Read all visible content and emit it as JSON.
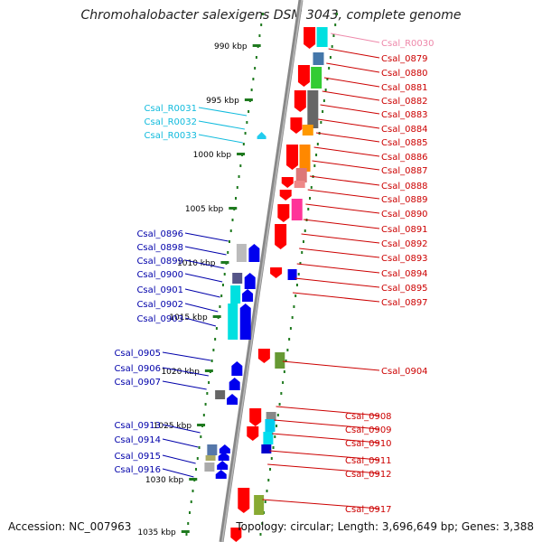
{
  "title": "Chromohalobacter salexigens DSM 3043, complete genome",
  "footer": {
    "accession": "Accession: NC_007963",
    "topology": "Topology: circular; Length: 3,696,649 bp; Genes: 3,388"
  },
  "colors": {
    "backbone": "#888888",
    "tick": "#1f7a1f",
    "forward_gene": "#ff0000",
    "reverse_gene": "#0000ee",
    "rna": "#22ccee",
    "label_forward": "#cc0000",
    "label_reverse": "#0000aa",
    "label_rna": "#11bbdd",
    "label_pseudo": "#ee88aa"
  },
  "kbp_ticks": [
    "990 kbp",
    "995 kbp",
    "1000 kbp",
    "1005 kbp",
    "1010 kbp",
    "1015 kbp",
    "1020 kbp",
    "1025 kbp",
    "1030 kbp",
    "1035 kbp"
  ],
  "right_labels": [
    {
      "text": "Csal_R0030",
      "kind": "pseudo"
    },
    {
      "text": "Csal_0879",
      "kind": "forward"
    },
    {
      "text": "Csal_0880",
      "kind": "forward"
    },
    {
      "text": "Csal_0881",
      "kind": "forward"
    },
    {
      "text": "Csal_0882",
      "kind": "forward"
    },
    {
      "text": "Csal_0883",
      "kind": "forward"
    },
    {
      "text": "Csal_0884",
      "kind": "forward"
    },
    {
      "text": "Csal_0885",
      "kind": "forward"
    },
    {
      "text": "Csal_0886",
      "kind": "forward"
    },
    {
      "text": "Csal_0887",
      "kind": "forward"
    },
    {
      "text": "Csal_0888",
      "kind": "forward"
    },
    {
      "text": "Csal_0889",
      "kind": "forward"
    },
    {
      "text": "Csal_0890",
      "kind": "forward"
    },
    {
      "text": "Csal_0891",
      "kind": "forward"
    },
    {
      "text": "Csal_0892",
      "kind": "forward"
    },
    {
      "text": "Csal_0893",
      "kind": "forward"
    },
    {
      "text": "Csal_0894",
      "kind": "forward"
    },
    {
      "text": "Csal_0895",
      "kind": "forward"
    },
    {
      "text": "Csal_0897",
      "kind": "forward"
    },
    {
      "text": "Csal_0904",
      "kind": "forward"
    },
    {
      "text": "Csal_0908",
      "kind": "forward"
    },
    {
      "text": "Csal_0909",
      "kind": "forward"
    },
    {
      "text": "Csal_0910",
      "kind": "forward"
    },
    {
      "text": "Csal_0911",
      "kind": "forward"
    },
    {
      "text": "Csal_0912",
      "kind": "forward"
    },
    {
      "text": "Csal_0917",
      "kind": "forward"
    }
  ],
  "left_labels": [
    {
      "text": "Csal_R0031",
      "kind": "rna"
    },
    {
      "text": "Csal_R0032",
      "kind": "rna"
    },
    {
      "text": "Csal_R0033",
      "kind": "rna"
    },
    {
      "text": "Csal_0896",
      "kind": "reverse"
    },
    {
      "text": "Csal_0898",
      "kind": "reverse"
    },
    {
      "text": "Csal_0899",
      "kind": "reverse"
    },
    {
      "text": "Csal_0900",
      "kind": "reverse"
    },
    {
      "text": "Csal_0901",
      "kind": "reverse"
    },
    {
      "text": "Csal_0902",
      "kind": "reverse"
    },
    {
      "text": "Csal_0903",
      "kind": "reverse"
    },
    {
      "text": "Csal_0905",
      "kind": "reverse"
    },
    {
      "text": "Csal_0906",
      "kind": "reverse"
    },
    {
      "text": "Csal_0907",
      "kind": "reverse"
    },
    {
      "text": "Csal_0913",
      "kind": "reverse"
    },
    {
      "text": "Csal_0914",
      "kind": "reverse"
    },
    {
      "text": "Csal_0915",
      "kind": "reverse"
    },
    {
      "text": "Csal_0916",
      "kind": "reverse"
    }
  ]
}
